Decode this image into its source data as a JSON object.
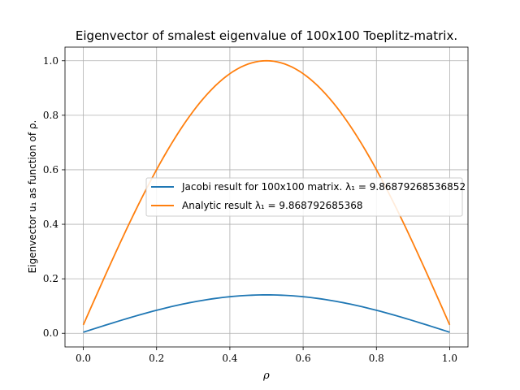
{
  "chart_data": {
    "type": "line",
    "title": "Eigenvector of smalest eigenvalue of 100x100 Toeplitz-matrix.",
    "xlabel": "ρ",
    "ylabel": "Eigenvector u₁ as function of ρ.",
    "xlim": [
      -0.05,
      1.05
    ],
    "ylim": [
      -0.05,
      1.05
    ],
    "xticks": [
      "0.0",
      "0.2",
      "0.4",
      "0.6",
      "0.8",
      "1.0"
    ],
    "yticks": [
      "0.0",
      "0.2",
      "0.4",
      "0.6",
      "0.8",
      "1.0"
    ],
    "grid": true,
    "legend_position": "center-right",
    "series": [
      {
        "name": "Jacobi result for 100x100 matrix. λ₁ = 9.86879268536852",
        "color": "#1f77b4",
        "x": [
          0.0,
          0.1,
          0.2,
          0.3,
          0.4,
          0.5,
          0.6,
          0.7,
          0.8,
          0.9,
          1.0
        ],
        "y": [
          0.004,
          0.044,
          0.084,
          0.114,
          0.134,
          0.141,
          0.134,
          0.114,
          0.084,
          0.044,
          0.004
        ]
      },
      {
        "name": "Analytic result λ₁ = 9.868792685368",
        "color": "#ff7f0e",
        "x": [
          0.0,
          0.1,
          0.2,
          0.3,
          0.4,
          0.5,
          0.6,
          0.7,
          0.8,
          0.9,
          1.0
        ],
        "y": [
          0.031,
          0.309,
          0.588,
          0.809,
          0.951,
          1.0,
          0.951,
          0.809,
          0.588,
          0.309,
          0.031
        ]
      }
    ]
  }
}
